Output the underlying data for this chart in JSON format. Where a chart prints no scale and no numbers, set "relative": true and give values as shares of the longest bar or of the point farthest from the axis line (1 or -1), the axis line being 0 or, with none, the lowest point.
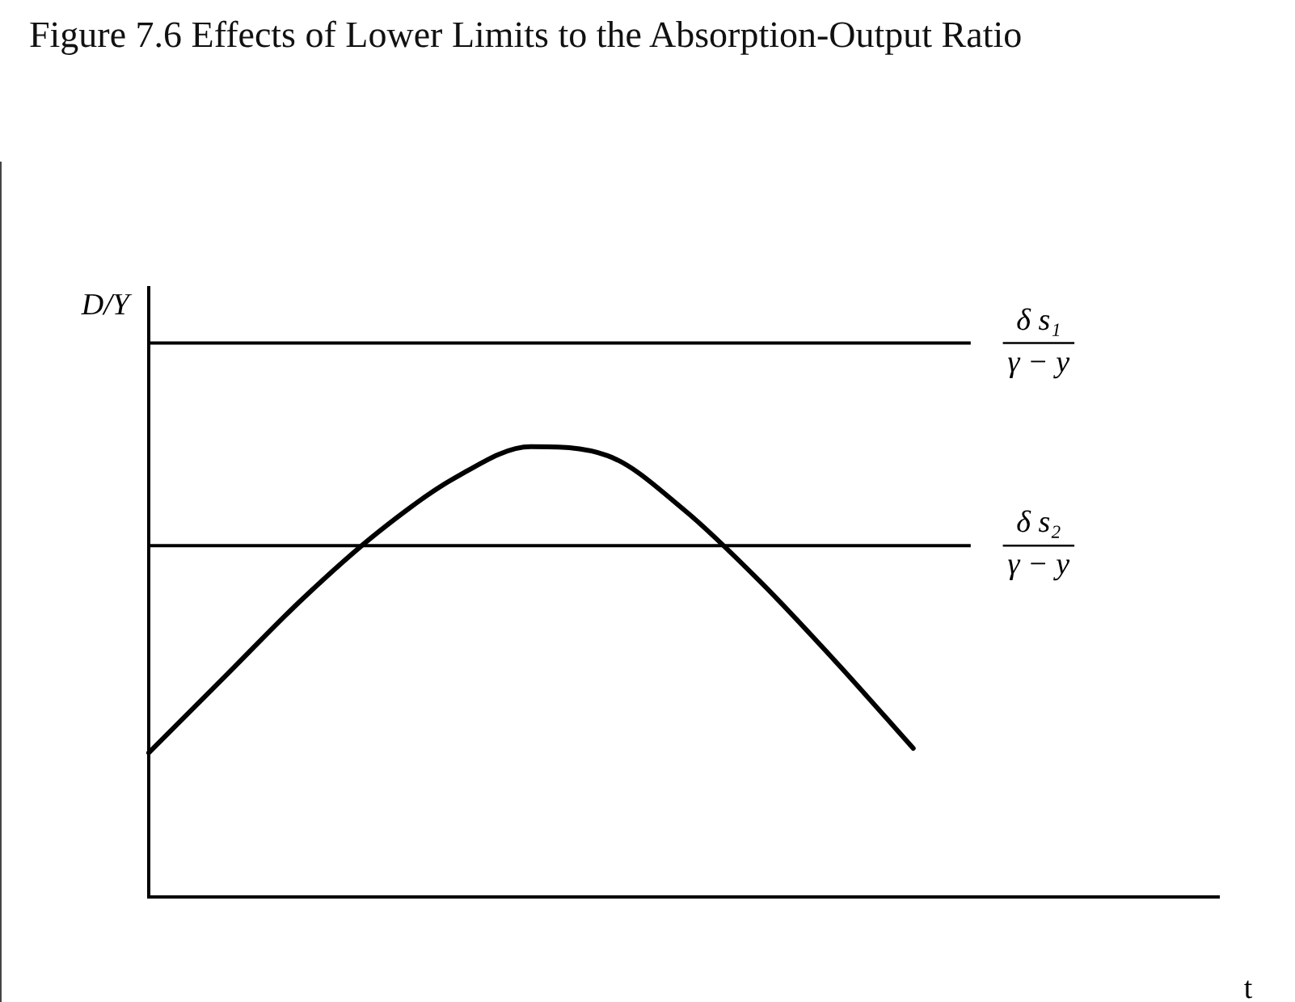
{
  "chart_data": {
    "type": "line",
    "title": "Figure 7.6 Effects of Lower Limits to the Absorption-Output Ratio",
    "xlabel": "t",
    "ylabel": "D/Y",
    "relative": true,
    "categories": [
      null,
      null,
      null,
      null,
      null,
      null,
      null,
      null,
      null,
      null,
      null,
      null,
      null,
      null,
      null
    ],
    "series": [
      {
        "color": "#000000",
        "values": [
          0.32,
          0.49,
          0.66,
          0.81,
          0.93,
          1,
          0.98,
          0.86,
          0.7,
          0.52,
          0.33,
          null,
          null,
          null,
          null
        ]
      }
    ],
    "ref_lines": [
      {
        "axis": "y",
        "value": 1.23,
        "label": "δ s₁\nγ − y",
        "color": "#000000"
      },
      {
        "axis": "y",
        "value": 0.78,
        "label": "δ s₂\nγ − y",
        "color": "#000000"
      }
    ],
    "marker": "none",
    "line_style": "solid",
    "grid": false,
    "legend": false
  }
}
